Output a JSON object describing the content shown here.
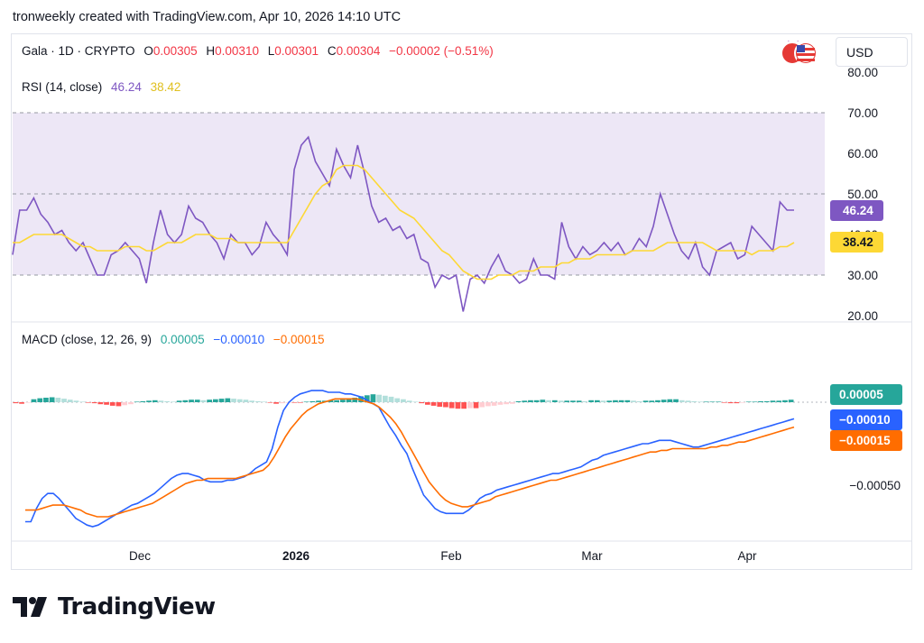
{
  "attribution": "tronweekly created with TradingView.com, Apr 10, 2026 14:10 UTC",
  "symbol": {
    "name": "Gala · 1D · CRYPTO",
    "o_label": "O",
    "o": "0.00305",
    "h_label": "H",
    "h": "0.00310",
    "l_label": "L",
    "l": "0.00301",
    "c_label": "C",
    "c": "0.00304",
    "change": "−0.00002 (−0.51%)"
  },
  "currency": "USD",
  "brand": "TradingView",
  "colors": {
    "rsi": "#7e57c2",
    "rsi_ma": "#fdd835",
    "macd": "#2962ff",
    "signal": "#ff6d00",
    "hist_pos_strong": "#26a69a",
    "hist_pos_weak": "#b2dfdb",
    "hist_neg_strong": "#ff5252",
    "hist_neg_weak": "#ffcdd2",
    "rsi_band": "#ede7f6"
  },
  "chart_data": [
    {
      "type": "line",
      "title": "RSI (14, close)",
      "legend_values": [
        "46.24",
        "38.42"
      ],
      "y_ticks": [
        "80.00",
        "70.00",
        "60.00",
        "50.00",
        "40.00",
        "30.00",
        "20.00"
      ],
      "ylim": [
        20,
        80
      ],
      "bands": [
        30,
        50,
        70
      ],
      "last_labels": [
        "46.24",
        "38.42"
      ],
      "series": [
        {
          "values": [
            35,
            46,
            46,
            49,
            45,
            43,
            40,
            41,
            38,
            36,
            38,
            34,
            30,
            30,
            35,
            36,
            38,
            36,
            34,
            28,
            38,
            46,
            40,
            38,
            40,
            47,
            44,
            43,
            40,
            38,
            34,
            40,
            38,
            38,
            35,
            37,
            43,
            40,
            38,
            35,
            56,
            62,
            64,
            58,
            55,
            52,
            61,
            57,
            54,
            62,
            55,
            47,
            43,
            44,
            41,
            42,
            39,
            40,
            34,
            33,
            27,
            30,
            29,
            30,
            21,
            29,
            30,
            28,
            32,
            35,
            31,
            30,
            28,
            29,
            34,
            30,
            30,
            29,
            43,
            37,
            34,
            37,
            35,
            36,
            38,
            36,
            38,
            35,
            36,
            39,
            37,
            42,
            50,
            45,
            40,
            36,
            34,
            38,
            32,
            30,
            36,
            37,
            38,
            34,
            35,
            42,
            40,
            38,
            36,
            48,
            46,
            46
          ]
        },
        {
          "values": [
            38,
            38,
            39,
            40,
            40,
            40,
            40,
            40,
            39,
            38,
            37,
            37,
            36,
            36,
            36,
            36,
            37,
            37,
            37,
            36,
            36,
            37,
            38,
            38,
            38,
            39,
            40,
            40,
            40,
            39,
            39,
            39,
            38,
            38,
            38,
            38,
            38,
            38,
            38,
            38,
            41,
            44,
            47,
            50,
            52,
            53,
            56,
            57,
            57,
            57,
            56,
            54,
            52,
            50,
            48,
            46,
            45,
            44,
            42,
            40,
            38,
            36,
            35,
            33,
            31,
            30,
            29,
            29,
            29,
            30,
            30,
            30,
            31,
            31,
            31,
            32,
            32,
            32,
            33,
            33,
            34,
            34,
            34,
            35,
            35,
            35,
            35,
            35,
            36,
            36,
            36,
            36,
            37,
            38,
            38,
            38,
            38,
            38,
            38,
            37,
            36,
            36,
            36,
            36,
            36,
            35,
            36,
            36,
            36,
            37,
            37,
            38
          ]
        }
      ],
      "x_ticks": [
        "Dec",
        "2026",
        "Feb",
        "Mar",
        "Apr"
      ]
    },
    {
      "type": "line",
      "title": "MACD (close, 12, 26, 9)",
      "legend_values": [
        "0.00005",
        "−0.00010",
        "−0.00015"
      ],
      "y_ticks": [
        "−0.00050"
      ],
      "last_labels": [
        "0.00005",
        "−0.00010",
        "−0.00015"
      ],
      "series": [
        {
          "values": [
            -72,
            -72,
            -64,
            -58,
            -55,
            -55,
            -58,
            -62,
            -66,
            -70,
            -72,
            -74,
            -75,
            -74,
            -72,
            -70,
            -68,
            -66,
            -64,
            -62,
            -61,
            -59,
            -57,
            -55,
            -52,
            -49,
            -46,
            -44,
            -43,
            -43,
            -44,
            -45,
            -47,
            -48,
            -48,
            -48,
            -47,
            -47,
            -46,
            -45,
            -43,
            -40,
            -38,
            -36,
            -28,
            -15,
            -5,
            0,
            3,
            5,
            6,
            7,
            7,
            7,
            6,
            6,
            6,
            5,
            5,
            4,
            3,
            1,
            -1,
            -3,
            -9,
            -15,
            -20,
            -26,
            -31,
            -40,
            -48,
            -56,
            -60,
            -64,
            -66,
            -67,
            -67,
            -67,
            -67,
            -65,
            -62,
            -58,
            -56,
            -55,
            -53,
            -52,
            -51,
            -50,
            -49,
            -48,
            -47,
            -46,
            -45,
            -44,
            -43,
            -43,
            -42,
            -41,
            -40,
            -39,
            -37,
            -35,
            -34,
            -32,
            -31,
            -30,
            -29,
            -28,
            -27,
            -26,
            -25,
            -25,
            -24,
            -23,
            -23,
            -23,
            -24,
            -25,
            -26,
            -27,
            -27,
            -26,
            -25,
            -24,
            -23,
            -22,
            -21,
            -20,
            -19,
            -18,
            -17,
            -16,
            -15,
            -14,
            -13,
            -12,
            -11,
            -10
          ]
        },
        {
          "values": [
            -65,
            -65,
            -65,
            -64,
            -63,
            -62,
            -62,
            -62,
            -63,
            -64,
            -65,
            -67,
            -68,
            -69,
            -69,
            -69,
            -68,
            -67,
            -66,
            -65,
            -64,
            -63,
            -62,
            -61,
            -59,
            -57,
            -55,
            -53,
            -51,
            -49,
            -48,
            -47,
            -47,
            -46,
            -46,
            -46,
            -46,
            -46,
            -46,
            -45,
            -44,
            -43,
            -42,
            -41,
            -38,
            -33,
            -27,
            -21,
            -16,
            -12,
            -8,
            -5,
            -3,
            -1,
            0,
            1,
            2,
            2,
            2,
            2,
            2,
            1,
            0,
            -1,
            -3,
            -6,
            -9,
            -13,
            -18,
            -24,
            -30,
            -36,
            -42,
            -48,
            -52,
            -56,
            -59,
            -61,
            -62,
            -63,
            -63,
            -62,
            -61,
            -60,
            -59,
            -57,
            -56,
            -55,
            -54,
            -53,
            -52,
            -51,
            -50,
            -49,
            -48,
            -47,
            -47,
            -46,
            -45,
            -44,
            -43,
            -42,
            -41,
            -40,
            -39,
            -38,
            -37,
            -36,
            -35,
            -34,
            -33,
            -32,
            -31,
            -30,
            -30,
            -29,
            -29,
            -28,
            -28,
            -28,
            -28,
            -28,
            -28,
            -28,
            -27,
            -27,
            -26,
            -26,
            -25,
            -24,
            -24,
            -23,
            -22,
            -21,
            -20,
            -19,
            -18,
            -17,
            -16,
            -15
          ]
        }
      ],
      "histogram": [
        -2,
        -3,
        -1,
        6,
        8,
        9,
        10,
        9,
        7,
        5,
        3,
        1,
        -1,
        -2,
        -4,
        -5,
        -7,
        -8,
        -6,
        -4,
        1,
        2,
        3,
        4,
        3,
        2,
        1,
        3,
        4,
        5,
        5,
        4,
        5,
        6,
        7,
        8,
        7,
        6,
        5,
        3,
        2,
        1,
        -1,
        -3,
        -2,
        -1,
        -1,
        -1,
        1,
        2,
        3,
        3,
        4,
        4,
        5,
        6,
        9,
        12,
        14,
        16,
        15,
        13,
        11,
        8,
        6,
        3,
        1,
        -2,
        -5,
        -7,
        -9,
        -10,
        -12,
        -13,
        -13,
        -12,
        -12,
        -10,
        -8,
        -7,
        -5,
        -4,
        -3,
        2,
        3,
        4,
        4,
        5,
        4,
        4,
        3,
        3,
        3,
        3,
        2,
        4,
        4,
        3,
        3,
        4,
        4,
        4,
        3,
        2,
        3,
        3,
        4,
        5,
        6,
        6,
        4,
        3,
        2,
        1,
        1,
        1,
        1,
        -1,
        -2,
        -2,
        -1,
        1,
        1,
        2,
        2,
        3,
        3,
        4,
        5
      ],
      "x_ticks": [
        "Dec",
        "2026",
        "Feb",
        "Mar",
        "Apr"
      ]
    }
  ]
}
